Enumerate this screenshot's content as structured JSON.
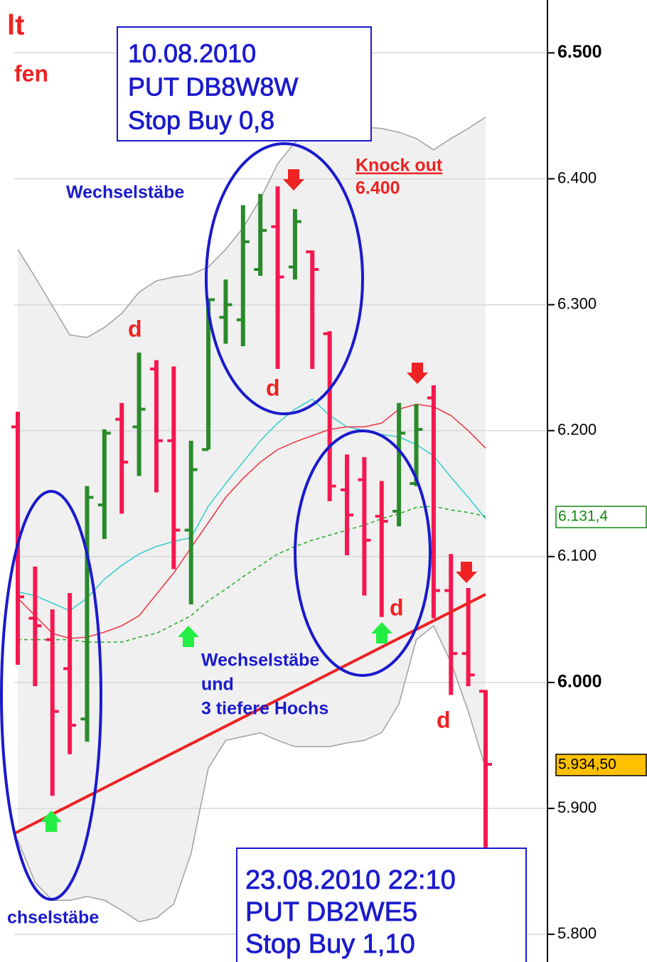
{
  "chart_data": {
    "type": "ohlc",
    "ylim": [
      5778,
      6542
    ],
    "yticks": [
      {
        "value": 5800,
        "label": "5.800"
      },
      {
        "value": 5900,
        "label": "5.900"
      },
      {
        "value": 6000,
        "label": "6.000"
      },
      {
        "value": 6100,
        "label": "6.100"
      },
      {
        "value": 6200,
        "label": "6.200"
      },
      {
        "value": 6300,
        "label": "6.300"
      },
      {
        "value": 6400,
        "label": "6.400"
      },
      {
        "value": 6500,
        "label": "6.500"
      }
    ],
    "grid": true,
    "up_color": "#2a8a2a",
    "down_color": "#f5174f",
    "bars": [
      {
        "open": 6203,
        "high": 6215,
        "low": 6014,
        "close": 6068
      },
      {
        "open": 6051,
        "high": 6092,
        "low": 5997,
        "close": 6045
      },
      {
        "open": 6034,
        "high": 6058,
        "low": 5910,
        "close": 5977
      },
      {
        "open": 6011,
        "high": 6071,
        "low": 5943,
        "close": 5966
      },
      {
        "open": 5971,
        "high": 6156,
        "low": 5953,
        "close": 6147
      },
      {
        "open": 6141,
        "high": 6201,
        "low": 6114,
        "close": 6198
      },
      {
        "open": 6209,
        "high": 6222,
        "low": 6134,
        "close": 6175
      },
      {
        "open": 6203,
        "high": 6262,
        "low": 6164,
        "close": 6217
      },
      {
        "open": 6249,
        "high": 6256,
        "low": 6151,
        "close": 6192
      },
      {
        "open": 6192,
        "high": 6251,
        "low": 6090,
        "close": 6121
      },
      {
        "open": 6121,
        "high": 6192,
        "low": 6062,
        "close": 6169
      },
      {
        "open": 6185,
        "high": 6305,
        "low": 6185,
        "close": 6304
      },
      {
        "open": 6290,
        "high": 6320,
        "low": 6269,
        "close": 6300
      },
      {
        "open": 6288,
        "high": 6379,
        "low": 6267,
        "close": 6350
      },
      {
        "open": 6328,
        "high": 6388,
        "low": 6323,
        "close": 6359
      },
      {
        "open": 6362,
        "high": 6394,
        "low": 6249,
        "close": 6322
      },
      {
        "open": 6330,
        "high": 6376,
        "low": 6320,
        "close": 6366
      },
      {
        "open": 6342,
        "high": 6343,
        "low": 6249,
        "close": 6328
      },
      {
        "open": 6277,
        "high": 6279,
        "low": 6144,
        "close": 6156
      },
      {
        "open": 6153,
        "high": 6181,
        "low": 6101,
        "close": 6133
      },
      {
        "open": 6161,
        "high": 6179,
        "low": 6069,
        "close": 6113
      },
      {
        "open": 6132,
        "high": 6160,
        "low": 6052,
        "close": 6128
      },
      {
        "open": 6136,
        "high": 6222,
        "low": 6124,
        "close": 6198
      },
      {
        "open": 6158,
        "high": 6221,
        "low": 6156,
        "close": 6201
      },
      {
        "open": 6226,
        "high": 6236,
        "low": 6051,
        "close": 6073
      },
      {
        "open": 6073,
        "high": 6102,
        "low": 5990,
        "close": 6023
      },
      {
        "open": 6023,
        "high": 6075,
        "low": 5997,
        "close": 6006
      },
      {
        "open": 5993,
        "high": 5994,
        "low": 5867,
        "close": 5935
      }
    ],
    "series": [
      {
        "color": "#a0a0a0",
        "values": [
          6344,
          6322,
          6299,
          6276,
          6274,
          6282,
          6293,
          6310,
          6319,
          6322,
          6324,
          6330,
          6344,
          6361,
          6384,
          6412,
          6429,
          6437,
          6440,
          6441,
          6441,
          6440,
          6437,
          6432,
          6423,
          6432,
          6440,
          6449
        ]
      },
      {
        "color": "#a0a0a0",
        "values": [
          5875,
          5841,
          5827,
          5827,
          5830,
          5827,
          5819,
          5810,
          5813,
          5824,
          5864,
          5932,
          5954,
          5957,
          5960,
          5954,
          5949,
          5949,
          5949,
          5952,
          5954,
          5960,
          5983,
          6034,
          6045,
          6016,
          5977,
          5932
        ]
      },
      {
        "color": "#33cccc",
        "values": [
          6072,
          6069,
          6063,
          6057,
          6067,
          6082,
          6093,
          6102,
          6108,
          6112,
          6115,
          6140,
          6158,
          6175,
          6192,
          6206,
          6217,
          6225,
          6212,
          6203,
          6200,
          6197,
          6195,
          6189,
          6180,
          6163,
          6147,
          6130
        ]
      },
      {
        "color": "#ee3344",
        "values": [
          6067,
          6053,
          6039,
          6035,
          6036,
          6040,
          6045,
          6053,
          6070,
          6087,
          6107,
          6127,
          6147,
          6162,
          6175,
          6185,
          6191,
          6196,
          6201,
          6203,
          6203,
          6206,
          6217,
          6221,
          6219,
          6212,
          6200,
          6186
        ]
      },
      {
        "color": "#22aa22",
        "dashed": true,
        "values": [
          6034,
          6034,
          6034,
          6034,
          6032,
          6032,
          6032,
          6036,
          6039,
          6046,
          6053,
          6065,
          6074,
          6084,
          6093,
          6102,
          6108,
          6113,
          6117,
          6121,
          6125,
          6130,
          6134,
          6139,
          6140,
          6137,
          6135,
          6132
        ]
      }
    ],
    "trendline": {
      "from": 5880,
      "to": 6070,
      "color": "#ee2222"
    },
    "price_labels": [
      {
        "value": 6131.4,
        "label": "6.131,4",
        "color": "#118811",
        "fill": "#ffffff"
      },
      {
        "value": 5934.5,
        "label": "5.934,50",
        "color": "#000000",
        "fill": "#ffc000"
      }
    ],
    "header": [
      "lt",
      "fen"
    ],
    "boxes": [
      [
        "10.08.2010",
        "PUT DB8W8W",
        "Stop Buy 0,8"
      ],
      [
        "23.08.2010 22:10",
        "PUT DB2WE5",
        "Stop Buy 1,10"
      ]
    ],
    "annotations": [
      {
        "text": "Wechselstäbe",
        "color": "#1a1acc"
      },
      {
        "text": "Knock out",
        "color": "#ee2222"
      },
      {
        "text": "6.400",
        "color": "#ee2222"
      },
      {
        "text": "d",
        "color": "#ee2222"
      },
      {
        "text": "d",
        "color": "#ee2222"
      },
      {
        "text": "d",
        "color": "#ee2222"
      },
      {
        "text": "d",
        "color": "#ee2222"
      },
      {
        "text": "Wechselstäbe",
        "color": "#1a1acc"
      },
      {
        "text": "und",
        "color": "#1a1acc"
      },
      {
        "text": "3 tiefere Hochs",
        "color": "#1a1acc"
      },
      {
        "text": "chselstäbe",
        "color": "#1a1acc"
      }
    ]
  }
}
